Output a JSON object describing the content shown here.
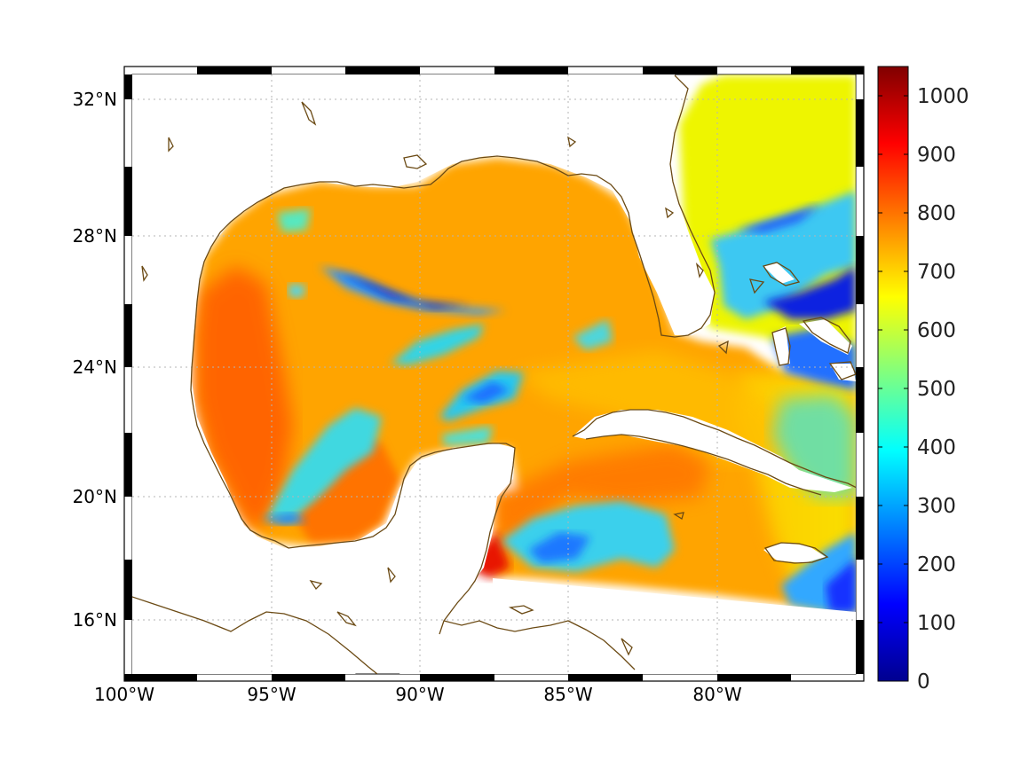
{
  "map": {
    "type": "filled-contour-map",
    "region": "Gulf of Mexico and western Caribbean",
    "lon_range": [
      -100,
      -75
    ],
    "lat_range": [
      14.3,
      33
    ],
    "grid": true,
    "x_ticks": [
      {
        "label": "100°W",
        "lon": -100
      },
      {
        "label": "95°W",
        "lon": -95
      },
      {
        "label": "90°W",
        "lon": -90
      },
      {
        "label": "85°W",
        "lon": -85
      },
      {
        "label": "80°W",
        "lon": -80
      }
    ],
    "y_ticks": [
      {
        "label": "32°N",
        "lat": 32
      },
      {
        "label": "28°N",
        "lat": 28
      },
      {
        "label": "24°N",
        "lat": 24
      },
      {
        "label": "20°N",
        "lat": 20
      },
      {
        "label": "16°N",
        "lat": 16
      }
    ],
    "coastline_color": "#6b4a14"
  },
  "colorbar": {
    "colormap": "jet",
    "min": 0,
    "max": 1050,
    "ticks": [
      "0",
      "100",
      "200",
      "300",
      "400",
      "500",
      "600",
      "700",
      "800",
      "900",
      "1000"
    ]
  }
}
